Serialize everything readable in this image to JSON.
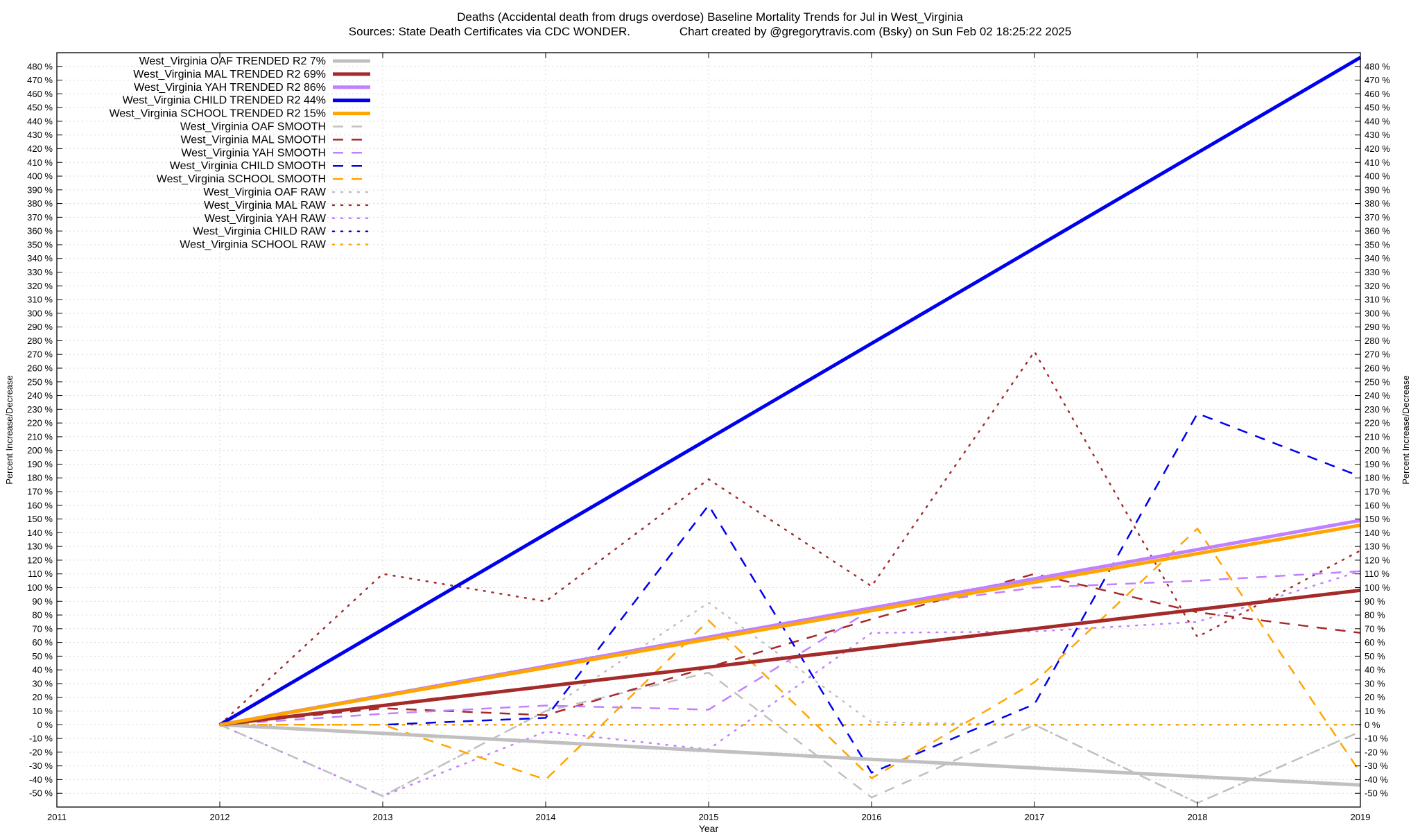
{
  "chart_data": {
    "type": "line",
    "title_line1": "Deaths (Accidental death from drugs overdose)  Baseline Mortality Trends for Jul in West_Virginia",
    "title_line2": "Sources: State Death Certificates via CDC WONDER.               Chart created by @gregorytravis.com (Bsky) on Sun Feb 02 18:25:22 2025",
    "xlabel": "Year",
    "ylabel": "Percent Increase/Decrease",
    "ylabel_right": "Percent Increase/Decrease",
    "xlim": [
      2011,
      2019
    ],
    "ylim": [
      -60,
      490
    ],
    "x_ticks": [
      "2011",
      "2012",
      "2013",
      "2014",
      "2015",
      "2016",
      "2017",
      "2018",
      "2019"
    ],
    "y_tick_values": [
      -50,
      -40,
      -30,
      -20,
      -10,
      0,
      10,
      20,
      30,
      40,
      50,
      60,
      70,
      80,
      90,
      100,
      110,
      120,
      130,
      140,
      150,
      160,
      170,
      180,
      190,
      200,
      210,
      220,
      230,
      240,
      250,
      260,
      270,
      280,
      290,
      300,
      310,
      320,
      330,
      340,
      350,
      360,
      370,
      380,
      390,
      400,
      410,
      420,
      430,
      440,
      450,
      460,
      470,
      480
    ],
    "y_tick_labels": [
      "-50 %",
      "-40 %",
      "-30 %",
      "-20 %",
      "-10 %",
      "0 %",
      "10 %",
      "20 %",
      "30 %",
      "40 %",
      "50 %",
      "60 %",
      "70 %",
      "80 %",
      "90 %",
      "100 %",
      "110 %",
      "120 %",
      "130 %",
      "140 %",
      "150 %",
      "160 %",
      "170 %",
      "180 %",
      "190 %",
      "200 %",
      "210 %",
      "220 %",
      "230 %",
      "240 %",
      "250 %",
      "260 %",
      "270 %",
      "280 %",
      "290 %",
      "300 %",
      "310 %",
      "320 %",
      "330 %",
      "340 %",
      "350 %",
      "360 %",
      "370 %",
      "380 %",
      "390 %",
      "400 %",
      "410 %",
      "420 %",
      "430 %",
      "440 %",
      "450 %",
      "460 %",
      "470 %",
      "480 %"
    ],
    "grid": true,
    "legend_position": "top-left",
    "x": [
      2012,
      2013,
      2014,
      2015,
      2016,
      2017,
      2018,
      2019
    ],
    "series": [
      {
        "name": "West_Virginia OAF TRENDED R2  7%",
        "color": "#c0c0c0",
        "style": "trend",
        "values": [
          0,
          -6.3,
          -12.6,
          -18.9,
          -25.2,
          -31.5,
          -37.8,
          -44
        ]
      },
      {
        "name": "West_Virginia MAL TRENDED R2  69%",
        "color": "#a52a2a",
        "style": "trend",
        "values": [
          0,
          14,
          28,
          42,
          56,
          70,
          84,
          98
        ]
      },
      {
        "name": "West_Virginia YAH TRENDED R2  86%",
        "color": "#c080ff",
        "style": "trend",
        "values": [
          0,
          21.3,
          42.6,
          63.9,
          85.1,
          106.4,
          127.7,
          149
        ]
      },
      {
        "name": "West_Virginia CHILD TRENDED R2  44%",
        "color": "#0000ee",
        "style": "trend",
        "values": [
          0,
          69.5,
          139,
          208.5,
          278,
          347.5,
          417,
          486.5
        ]
      },
      {
        "name": "West_Virginia SCHOOL TRENDED R2  15%",
        "color": "#ffa500",
        "style": "trend",
        "values": [
          0,
          20.8,
          41.6,
          62.4,
          83.2,
          104,
          124.8,
          145.5
        ]
      },
      {
        "name": "West_Virginia OAF SMOOTH",
        "color": "#c0c0c0",
        "style": "smooth",
        "values": [
          0,
          -52,
          10,
          38,
          -53,
          0,
          -57,
          -5
        ]
      },
      {
        "name": "West_Virginia MAL SMOOTH",
        "color": "#a52a2a",
        "style": "smooth",
        "values": [
          0,
          12,
          7,
          42,
          77,
          110,
          82,
          67
        ]
      },
      {
        "name": "West_Virginia YAH SMOOTH",
        "color": "#c080ff",
        "style": "smooth",
        "values": [
          0,
          8,
          14,
          11,
          84,
          100,
          105,
          112
        ]
      },
      {
        "name": "West_Virginia CHILD SMOOTH",
        "color": "#0000ee",
        "style": "smooth",
        "values": [
          0,
          0,
          5,
          160,
          -35,
          15,
          227,
          181
        ]
      },
      {
        "name": "West_Virginia SCHOOL SMOOTH",
        "color": "#ffa500",
        "style": "smooth",
        "values": [
          0,
          0,
          -40,
          76,
          -39,
          31,
          143,
          -35
        ]
      },
      {
        "name": "West_Virginia OAF RAW",
        "color": "#c0c0c0",
        "style": "raw",
        "values": [
          0,
          -52,
          10,
          89,
          2,
          0,
          -57,
          -5
        ]
      },
      {
        "name": "West_Virginia MAL RAW",
        "color": "#a52a2a",
        "style": "raw",
        "values": [
          0,
          110,
          90,
          179,
          101,
          272,
          64,
          127
        ]
      },
      {
        "name": "West_Virginia YAH RAW",
        "color": "#c080ff",
        "style": "raw",
        "values": [
          0,
          -52,
          -5,
          -18,
          67,
          68,
          75,
          112
        ]
      },
      {
        "name": "West_Virginia CHILD RAW",
        "color": "#0000ee",
        "style": "raw",
        "values": [
          0,
          0,
          0,
          0,
          0,
          0,
          0,
          0
        ]
      },
      {
        "name": "West_Virginia SCHOOL RAW",
        "color": "#ffa500",
        "style": "raw",
        "values": [
          0,
          0,
          0,
          0,
          0,
          0,
          0,
          0
        ]
      }
    ]
  }
}
